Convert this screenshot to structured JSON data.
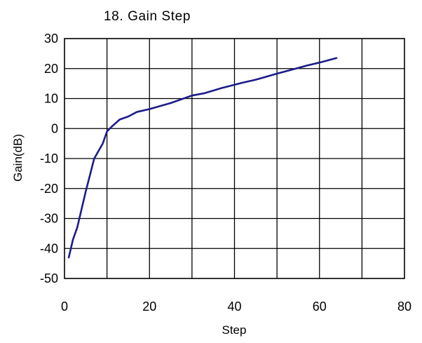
{
  "chart_data": {
    "type": "line",
    "title": "18. Gain Step",
    "xlabel": "Step",
    "ylabel": "Gain(dB)",
    "xlim": [
      0,
      80
    ],
    "ylim": [
      -50,
      30
    ],
    "xticks": [
      0,
      20,
      40,
      60,
      80
    ],
    "yticks": [
      30,
      20,
      10,
      0,
      -10,
      -20,
      -30,
      -40,
      -50
    ],
    "grid": true,
    "colors": {
      "series": "#1c1c8a",
      "grid": "#000000"
    },
    "series": [
      {
        "x": [
          1,
          2,
          3,
          5,
          7,
          9,
          10,
          11,
          13,
          15,
          17,
          20,
          25,
          30,
          33,
          37,
          42,
          45,
          50,
          55,
          57,
          60,
          64
        ],
        "y": [
          -43,
          -37,
          -33,
          -21,
          -10,
          -5,
          -1,
          0.5,
          3,
          4,
          5.5,
          6.5,
          8.5,
          11,
          11.8,
          13.5,
          15.3,
          16.3,
          18.3,
          20.2,
          21,
          22,
          23.5
        ]
      }
    ]
  }
}
